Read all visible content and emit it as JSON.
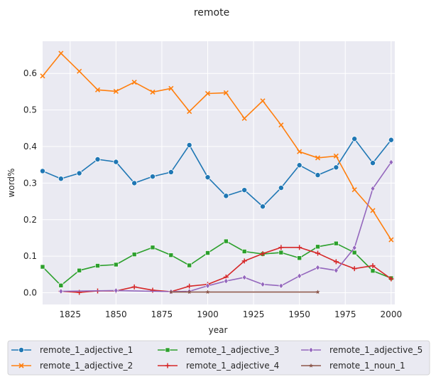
{
  "chart_data": {
    "type": "line",
    "title": "remote",
    "xlabel": "year",
    "ylabel": "word%",
    "xlim": [
      1810,
      2002
    ],
    "ylim": [
      -0.032,
      0.688
    ],
    "xticks": [
      1825,
      1850,
      1875,
      1900,
      1925,
      1950,
      1975,
      2000
    ],
    "yticks": [
      0.0,
      0.1,
      0.2,
      0.3,
      0.4,
      0.5,
      0.6
    ],
    "grid": true,
    "legend_position": "bottom",
    "series": [
      {
        "name": "remote_1_adjective_1",
        "color": "#1f77b4",
        "marker": "circle",
        "x": [
          1810,
          1820,
          1830,
          1840,
          1850,
          1860,
          1870,
          1880,
          1890,
          1900,
          1910,
          1920,
          1930,
          1940,
          1950,
          1960,
          1970,
          1980,
          1990,
          2000
        ],
        "y": [
          0.333,
          0.312,
          0.327,
          0.365,
          0.358,
          0.3,
          0.318,
          0.33,
          0.404,
          0.316,
          0.265,
          0.281,
          0.236,
          0.287,
          0.349,
          0.322,
          0.343,
          0.421,
          0.355,
          0.418
        ]
      },
      {
        "name": "remote_1_adjective_2",
        "color": "#ff7f0e",
        "marker": "x",
        "x": [
          1810,
          1820,
          1830,
          1840,
          1850,
          1860,
          1870,
          1880,
          1890,
          1900,
          1910,
          1920,
          1930,
          1940,
          1950,
          1960,
          1970,
          1980,
          1990,
          2000
        ],
        "y": [
          0.593,
          0.655,
          0.606,
          0.555,
          0.551,
          0.576,
          0.549,
          0.559,
          0.496,
          0.545,
          0.547,
          0.477,
          0.525,
          0.459,
          0.386,
          0.369,
          0.374,
          0.282,
          0.225,
          0.145
        ]
      },
      {
        "name": "remote_1_adjective_3",
        "color": "#2ca02c",
        "marker": "square",
        "x": [
          1810,
          1820,
          1830,
          1840,
          1850,
          1860,
          1870,
          1880,
          1890,
          1900,
          1910,
          1920,
          1930,
          1940,
          1950,
          1960,
          1970,
          1980,
          1990,
          2000
        ],
        "y": [
          0.071,
          0.02,
          0.061,
          0.074,
          0.077,
          0.105,
          0.124,
          0.103,
          0.075,
          0.109,
          0.141,
          0.113,
          0.106,
          0.11,
          0.095,
          0.126,
          0.135,
          0.11,
          0.06,
          0.04
        ]
      },
      {
        "name": "remote_1_adjective_4",
        "color": "#d62728",
        "marker": "plus",
        "x": [
          1820,
          1830,
          1840,
          1850,
          1860,
          1870,
          1880,
          1890,
          1900,
          1910,
          1920,
          1930,
          1940,
          1950,
          1960,
          1970,
          1980,
          1990,
          2000
        ],
        "y": [
          0.004,
          0.001,
          0.005,
          0.005,
          0.016,
          0.007,
          0.003,
          0.018,
          0.023,
          0.043,
          0.087,
          0.107,
          0.124,
          0.124,
          0.108,
          0.085,
          0.066,
          0.074,
          0.038
        ]
      },
      {
        "name": "remote_1_adjective_5",
        "color": "#9467bd",
        "marker": "diamond",
        "x": [
          1820,
          1850,
          1880,
          1890,
          1900,
          1910,
          1920,
          1930,
          1940,
          1950,
          1960,
          1970,
          1980,
          1990,
          2000
        ],
        "y": [
          0.004,
          0.006,
          0.003,
          0.004,
          0.019,
          0.032,
          0.042,
          0.023,
          0.019,
          0.046,
          0.069,
          0.061,
          0.123,
          0.285,
          0.357
        ]
      },
      {
        "name": "remote_1_noun_1",
        "color": "#8c564b",
        "marker": "star",
        "x": [
          1880,
          1890,
          1900,
          1960
        ],
        "y": [
          0.002,
          0.002,
          0.002,
          0.002
        ]
      }
    ]
  }
}
